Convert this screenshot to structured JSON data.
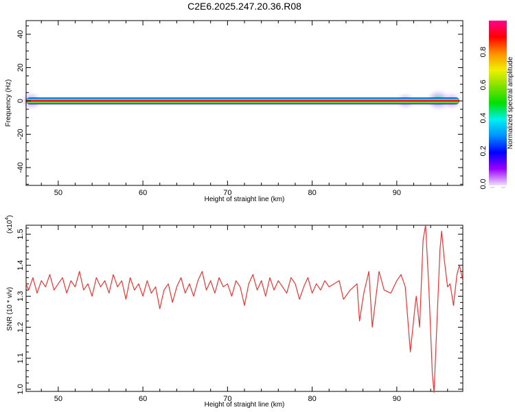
{
  "chart_data": [
    {
      "type": "heatmap",
      "title": "C2E6.2025.247.20.36.R08",
      "xlabel": "Height of straight line (km)",
      "ylabel": "Frequency (Hz)",
      "xlim": [
        46.2,
        97.8
      ],
      "ylim": [
        -50.7,
        48.2
      ],
      "xticks": [
        50,
        60,
        70,
        80,
        90
      ],
      "yticks": [
        -40,
        -20,
        0,
        20,
        40
      ],
      "colorbar": {
        "label": "Normalized spectral amplitude",
        "range": [
          0.0,
          1.0
        ],
        "ticks": [
          "0.0",
          "0.2",
          "0.4",
          "0.6",
          "0.8"
        ],
        "colors": [
          "#f0e0ff",
          "#9a00ff",
          "#0000ff",
          "#0090ff",
          "#00f0f0",
          "#00e000",
          "#80e000",
          "#f0f000",
          "#ff9000",
          "#ff0000",
          "#ff0090"
        ]
      },
      "band_center_hz": 0,
      "band_halfwidth_hz": 2,
      "blobs": [
        {
          "km": 46.8,
          "hz": 0,
          "amp": 0.35
        },
        {
          "km": 91.0,
          "hz": 0,
          "amp": 0.25
        },
        {
          "km": 94.9,
          "hz": 0.5,
          "amp": 0.55
        },
        {
          "km": 96.5,
          "hz": 0,
          "amp": 0.3
        }
      ]
    },
    {
      "type": "line",
      "xlabel": "Height of straight line (km)",
      "ylabel": "SNR (10 * v/v)",
      "yscale_label": "(x10",
      "yscale_exp": "4",
      "xlim": [
        46.2,
        97.8
      ],
      "ylim": [
        0.993,
        1.529
      ],
      "xticks": [
        50,
        60,
        70,
        80,
        90
      ],
      "yticks": [
        "1.0",
        "1.1",
        "1.2",
        "1.3",
        "1.4",
        "1.5"
      ],
      "series": [
        {
          "name": "SNR",
          "color": "#f03030",
          "x": [
            46.2,
            46.5,
            47.0,
            47.5,
            48.0,
            48.5,
            49.0,
            49.5,
            50.0,
            50.5,
            51.0,
            51.5,
            52.0,
            52.5,
            53.0,
            53.5,
            54.0,
            54.5,
            55.0,
            55.5,
            56.0,
            56.5,
            57.0,
            57.5,
            58.0,
            58.5,
            59.0,
            59.5,
            60.0,
            60.5,
            61.0,
            61.5,
            62.0,
            62.5,
            63.0,
            63.5,
            64.0,
            64.5,
            65.0,
            65.5,
            66.0,
            66.5,
            67.0,
            67.5,
            68.0,
            68.5,
            69.0,
            69.5,
            70.0,
            70.5,
            71.0,
            71.5,
            72.0,
            72.5,
            73.0,
            73.5,
            74.0,
            74.5,
            75.0,
            75.5,
            76.0,
            76.5,
            77.0,
            77.5,
            78.0,
            78.5,
            79.0,
            79.5,
            80.0,
            80.5,
            81.0,
            81.5,
            82.0,
            83.2,
            83.7,
            84.5,
            85.3,
            85.6,
            86.1,
            86.7,
            87.1,
            87.9,
            88.5,
            89.3,
            90.0,
            90.5,
            91.0,
            91.6,
            92.2,
            92.3,
            92.7,
            93.1,
            93.4,
            93.8,
            94.2,
            94.4,
            94.8,
            95.1,
            95.3,
            95.6,
            96.0,
            96.3,
            96.7,
            97.1,
            97.4,
            97.8
          ],
          "y": [
            1.34,
            1.32,
            1.36,
            1.31,
            1.35,
            1.33,
            1.37,
            1.32,
            1.34,
            1.36,
            1.31,
            1.35,
            1.33,
            1.38,
            1.32,
            1.34,
            1.3,
            1.36,
            1.33,
            1.35,
            1.31,
            1.37,
            1.33,
            1.35,
            1.29,
            1.36,
            1.32,
            1.34,
            1.3,
            1.35,
            1.31,
            1.33,
            1.26,
            1.32,
            1.34,
            1.28,
            1.33,
            1.36,
            1.31,
            1.34,
            1.3,
            1.35,
            1.38,
            1.32,
            1.35,
            1.31,
            1.36,
            1.33,
            1.34,
            1.3,
            1.35,
            1.33,
            1.27,
            1.34,
            1.37,
            1.32,
            1.35,
            1.3,
            1.36,
            1.32,
            1.35,
            1.33,
            1.31,
            1.36,
            1.34,
            1.29,
            1.33,
            1.36,
            1.31,
            1.34,
            1.32,
            1.35,
            1.33,
            1.35,
            1.29,
            1.32,
            1.34,
            1.22,
            1.31,
            1.38,
            1.2,
            1.38,
            1.32,
            1.31,
            1.35,
            1.37,
            1.33,
            1.12,
            1.28,
            1.3,
            1.2,
            1.48,
            1.53,
            1.32,
            1.05,
            0.99,
            1.25,
            1.45,
            1.51,
            1.42,
            1.33,
            1.34,
            1.27,
            1.37,
            1.4,
            1.35
          ]
        }
      ]
    }
  ]
}
